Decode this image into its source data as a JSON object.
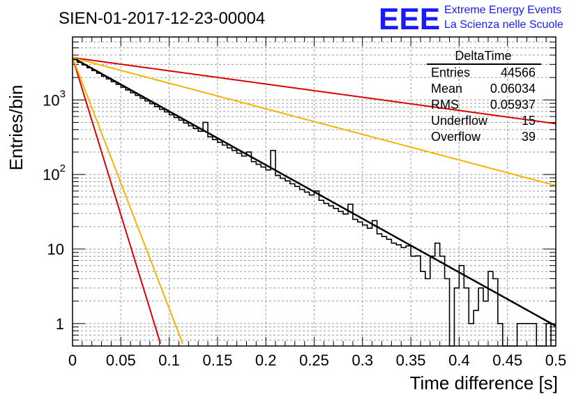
{
  "title": "SIEN-01-2017-12-23-00004",
  "logo": {
    "mark": "EEE",
    "line1": "Extreme Energy Events",
    "line2": "La Scienza nelle Scuole",
    "color": "#1a1aff"
  },
  "stats_box": {
    "header": "DeltaTime",
    "rows": [
      {
        "label": "Entries",
        "value": "44566"
      },
      {
        "label": "Mean",
        "value": "0.06034"
      },
      {
        "label": "RMS",
        "value": "0.05937"
      },
      {
        "label": "Underflow",
        "value": "15"
      },
      {
        "label": "Overflow",
        "value": "39"
      }
    ]
  },
  "chart_data": {
    "type": "line",
    "xlabel": "Time difference [s]",
    "ylabel": "Entries/bin",
    "xlim": [
      0,
      0.5
    ],
    "ylim": [
      0.5,
      7000
    ],
    "y_scale": "log",
    "grid": true,
    "x_ticks": [
      "0",
      "0.05",
      "0.1",
      "0.15",
      "0.2",
      "0.25",
      "0.3",
      "0.35",
      "0.4",
      "0.45",
      "0.5"
    ],
    "y_tick_labels": [
      {
        "value": 1,
        "text": "1"
      },
      {
        "value": 10,
        "text": "10"
      },
      {
        "value": 100,
        "base": "10",
        "exp": "2"
      },
      {
        "value": 1000,
        "base": "10",
        "exp": "3"
      }
    ],
    "histogram": {
      "color": "#000000",
      "bin_width": 0.005,
      "values": [
        3500,
        3200,
        2950,
        2700,
        2480,
        2280,
        2080,
        1920,
        1760,
        1620,
        1480,
        1360,
        1250,
        1150,
        1055,
        970,
        890,
        815,
        750,
        690,
        633,
        582,
        535,
        490,
        450,
        414,
        380,
        349,
        320,
        294,
        270,
        248,
        228,
        210,
        193,
        177,
        162,
        149,
        137,
        126,
        115,
        106,
        97,
        89,
        82,
        75,
        69,
        63,
        58,
        53,
        49,
        45,
        41,
        38,
        35,
        32,
        29.5,
        27,
        25,
        23,
        21,
        19,
        17.5,
        16,
        14.7,
        13.5,
        12.4,
        11.4,
        10.5,
        9.6,
        8.8,
        8.1,
        7.4,
        6.8,
        6.3,
        5.8,
        5.3,
        4.9,
        4.4,
        4.1,
        3.7,
        3.4,
        3.1,
        2.9,
        2.6,
        2.4,
        2.2,
        2.0,
        1.85,
        1.7,
        1.55,
        1.42,
        1.3,
        1.2,
        1.1,
        1.0,
        0.92,
        0.85,
        0.78,
        0.72
      ],
      "overrides": {
        "27": 500,
        "36": 200,
        "41": 210,
        "50": 60,
        "57": 40,
        "62": 24,
        "66": 12,
        "69": 11,
        "70": 8,
        "72": 5,
        "73": 4,
        "74": 8,
        "75": 12,
        "76": 8,
        "77": 4,
        "78": 0,
        "79": 3,
        "80": 6,
        "81": 3,
        "82": 1,
        "83": 1.5,
        "84": 3,
        "85": 2,
        "86": 5,
        "87": 4,
        "88": 1,
        "89": 0,
        "90": 0,
        "91": 0,
        "92": 1,
        "93": 1,
        "94": 1,
        "95": 1,
        "96": 0,
        "97": 0,
        "98": 1,
        "99": 0
      }
    },
    "curves": [
      {
        "color": "#000000",
        "amplitude": 3700,
        "tau": 0.0603,
        "width": 2.5
      },
      {
        "color": "#dd0000",
        "amplitude": 3700,
        "tau": 0.245,
        "width": 2
      },
      {
        "color": "#f5b400",
        "amplitude": 3700,
        "tau": 0.1265,
        "width": 2
      },
      {
        "color": "#dd0000",
        "amplitude": 3700,
        "tau": 0.0103,
        "width": 2
      },
      {
        "color": "#f5b400",
        "amplitude": 3700,
        "tau": 0.0129,
        "width": 2
      }
    ]
  }
}
